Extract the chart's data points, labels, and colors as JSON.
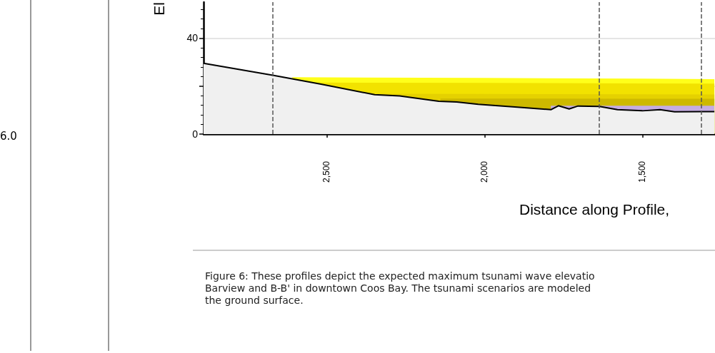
{
  "chart_data": {
    "type": "area",
    "xlabel": "Distance along Profile,",
    "ylabel": "El",
    "xlim": [
      2890,
      1270
    ],
    "xticks": [
      {
        "value": 2500,
        "label": "2,500"
      },
      {
        "value": 2000,
        "label": "2,000"
      },
      {
        "value": 1500,
        "label": "1,500"
      }
    ],
    "ylim": [
      0,
      55
    ],
    "yticks": [
      0,
      {
        "value": 20,
        "label": null
      },
      40
    ],
    "grid": "y",
    "series": [
      {
        "color": "#ffff1a",
        "x": [
          2609,
          2000,
          1500,
          1272
        ],
        "values": [
          23.7,
          23.4,
          23.1,
          22.9
        ]
      },
      {
        "color": "#f2e200",
        "x": [
          2545,
          2000,
          1500,
          1272
        ],
        "values": [
          21.5,
          21.3,
          21.1,
          21.0
        ]
      },
      {
        "color": "#e5d100",
        "x": [
          2330,
          2000,
          1500,
          1272
        ],
        "values": [
          16.8,
          16.7,
          16.6,
          16.5
        ]
      },
      {
        "color": "#cdb900",
        "x": [
          2140,
          2000,
          1500,
          1272
        ],
        "values": [
          14.8,
          14.8,
          14.7,
          14.7
        ]
      },
      {
        "color": "#c4ace2",
        "x": [
          1790,
          1500,
          1272
        ],
        "values": [
          11.8,
          11.8,
          11.8
        ]
      },
      {
        "color": "#f0f0f0",
        "x": [
          2890,
          2671,
          2518,
          2348,
          2269,
          2145,
          2088,
          2020,
          1896,
          1789,
          1766,
          1732,
          1704,
          1636,
          1579,
          1500,
          1444,
          1398,
          1313,
          1272
        ],
        "values": [
          29.5,
          24.5,
          20.8,
          16.4,
          15.9,
          13.7,
          13.4,
          12.4,
          11.2,
          10.2,
          11.8,
          10.5,
          11.7,
          11.5,
          10.2,
          9.7,
          10.2,
          9.3,
          9.4,
          9.4
        ]
      }
    ],
    "ref_lines": [
      {
        "axis": "x",
        "value": 2670,
        "color": "#555555",
        "line_style": "dashed"
      },
      {
        "axis": "x",
        "value": 1636,
        "color": "#555555",
        "line_style": "dashed"
      },
      {
        "axis": "x",
        "value": 1314,
        "color": "#555555",
        "line_style": "dashed"
      }
    ],
    "annotations": [
      "6.0",
      "Figure 6: These profiles depict the expected maximum tsunami wave elevatio",
      "Barview and B-B' in downtown Coos Bay. The tsunami scenarios are modeled",
      "the ground surface."
    ]
  }
}
